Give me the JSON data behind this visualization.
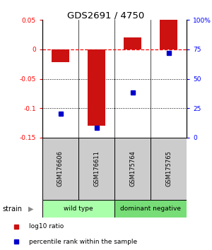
{
  "title": "GDS2691 / 4750",
  "samples": [
    "GSM176606",
    "GSM176611",
    "GSM175764",
    "GSM175765"
  ],
  "log10_ratio": [
    -0.022,
    -0.13,
    0.02,
    0.05
  ],
  "percentile_rank": [
    20,
    8,
    38,
    72
  ],
  "group_configs": [
    {
      "indices": [
        0,
        1
      ],
      "label": "wild type",
      "color": "#aaffaa"
    },
    {
      "indices": [
        2,
        3
      ],
      "label": "dominant negative",
      "color": "#77dd77"
    }
  ],
  "group_row_label": "strain",
  "ylim_left": [
    -0.15,
    0.05
  ],
  "ylim_right": [
    0,
    100
  ],
  "yticks_left": [
    0.05,
    0,
    -0.05,
    -0.1,
    -0.15
  ],
  "ytick_labels_left": [
    "0.05",
    "0",
    "-0.05",
    "-0.1",
    "-0.15"
  ],
  "yticks_right": [
    100,
    75,
    50,
    25,
    0
  ],
  "ytick_labels_right": [
    "100%",
    "75",
    "50",
    "25",
    "0"
  ],
  "bar_color": "#cc1111",
  "square_color": "#0000cc",
  "dotted_lines": [
    -0.05,
    -0.1
  ],
  "legend_ratio_label": "log10 ratio",
  "legend_pct_label": "percentile rank within the sample",
  "bar_width": 0.5,
  "label_bg": "#cccccc",
  "fig_bg": "#ffffff"
}
